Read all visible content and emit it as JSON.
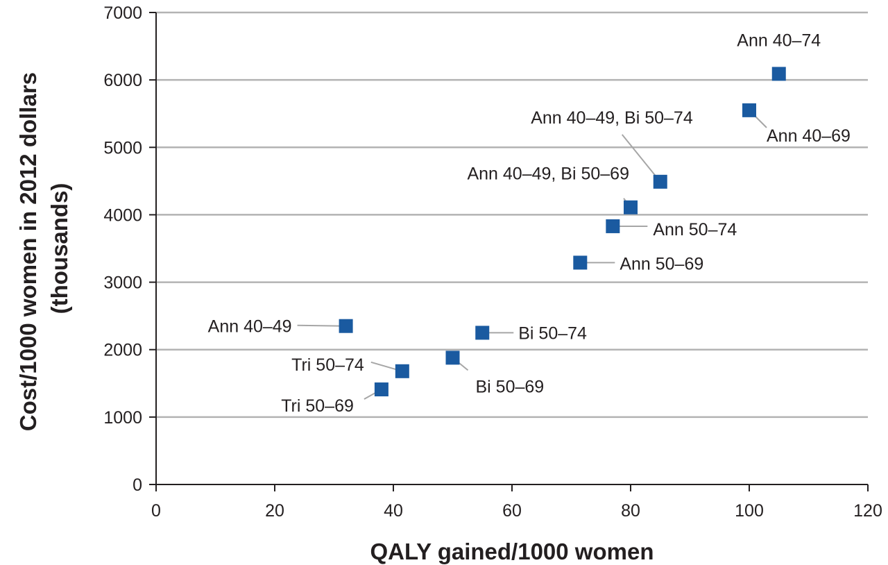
{
  "chart_data": {
    "type": "scatter",
    "xlabel": "QALY gained/1000 women",
    "ylabel": [
      "Cost/1000 women in 2012 dollars",
      "(thousands)"
    ],
    "xlim": [
      0,
      120
    ],
    "ylim": [
      0,
      7000
    ],
    "xticks": [
      0,
      20,
      40,
      60,
      80,
      100,
      120
    ],
    "yticks": [
      0,
      1000,
      2000,
      3000,
      4000,
      5000,
      6000,
      7000
    ],
    "grid": "horizontal",
    "marker_color": "#1a5aa0",
    "points": [
      {
        "label": "Ann 40–74",
        "x": 105,
        "y": 6090
      },
      {
        "label": "Ann 40–69",
        "x": 100,
        "y": 5550
      },
      {
        "label": "Ann 40–49, Bi 50–74",
        "x": 85,
        "y": 4490
      },
      {
        "label": "Ann 40–49, Bi 50–69",
        "x": 80,
        "y": 4110
      },
      {
        "label": "Ann 50–74",
        "x": 77,
        "y": 3830
      },
      {
        "label": "Ann 50–69",
        "x": 71.5,
        "y": 3290
      },
      {
        "label": "Ann 40–49",
        "x": 32,
        "y": 2350
      },
      {
        "label": "Bi 50–74",
        "x": 55,
        "y": 2250
      },
      {
        "label": "Bi 50–69",
        "x": 50,
        "y": 1880
      },
      {
        "label": "Tri 50–74",
        "x": 41.5,
        "y": 1680
      },
      {
        "label": "Tri 50–69",
        "x": 38,
        "y": 1410
      }
    ]
  }
}
